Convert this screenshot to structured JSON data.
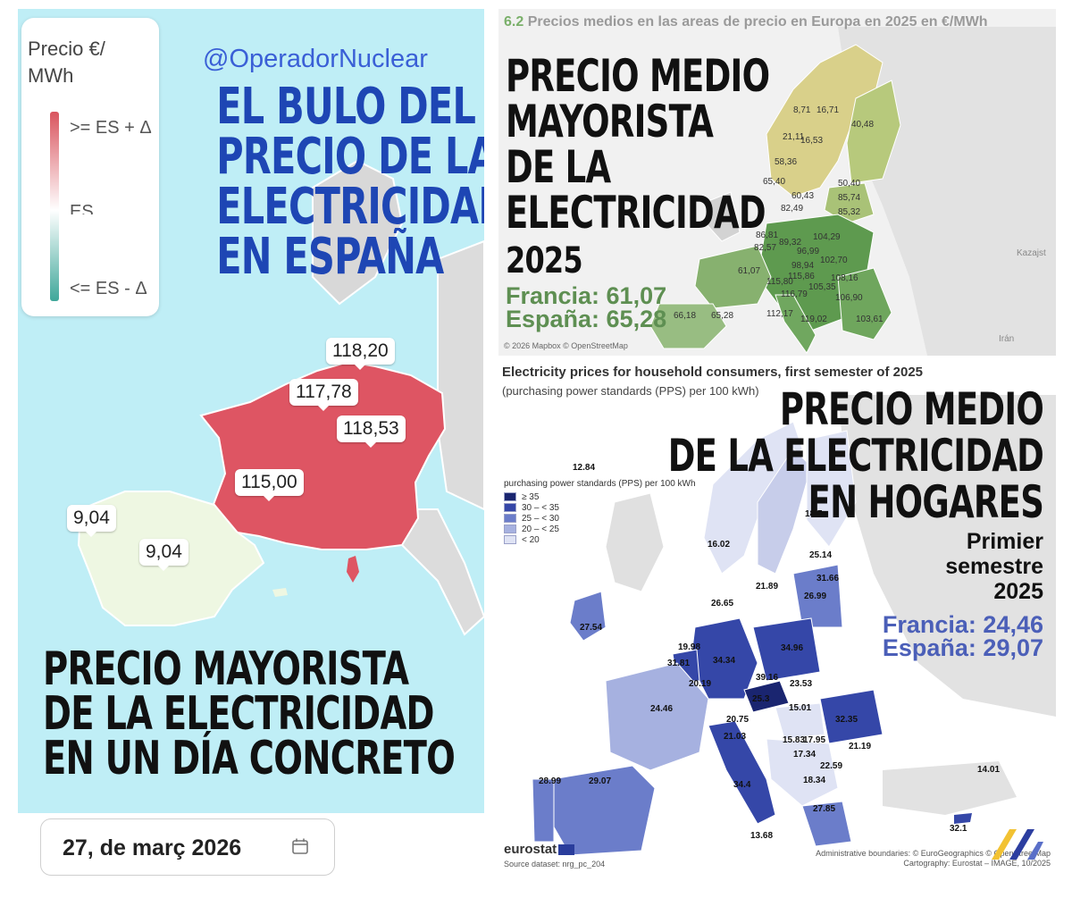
{
  "left_panel": {
    "legend": {
      "title": "Precio €/ MWh",
      "high": ">= ES + Δ",
      "mid": "ES",
      "low": "<= ES - Δ"
    },
    "handle": "@OperadorNuclear",
    "headline": [
      "EL BULO DEL",
      "PRECIO DE LA",
      "ELECTRICIDAD",
      "EN ESPAÑA"
    ],
    "prices": [
      {
        "id": "fr-ne",
        "value": "118,20"
      },
      {
        "id": "fr-n",
        "value": "117,78"
      },
      {
        "id": "fr-e",
        "value": "118,53"
      },
      {
        "id": "fr-s",
        "value": "115,00"
      },
      {
        "id": "pt",
        "value": "9,04"
      },
      {
        "id": "es",
        "value": "9,04"
      }
    ],
    "caption": [
      "PRECIO MAYORISTA",
      "DE LA ELECTRICIDAD",
      "EN UN DÍA CONCRETO"
    ],
    "date": "27, de març 2026",
    "colors": {
      "france": "#de5563",
      "iberia": "#eef7e2",
      "sea": "#bfeef6"
    }
  },
  "right_top": {
    "title_num": "6.2",
    "title": "Precios medios en las areas de precio en Europa en 2025 en €/MWh",
    "headline": [
      "PRECIO MEDIO",
      "MAYORISTA",
      "DE LA",
      "ELECTRICIDAD"
    ],
    "year": "2025",
    "francia": "Francia: 61,07",
    "espana": "España: 65,28",
    "credit": "© 2026 Mapbox © OpenStreetMap",
    "map_labels": [
      "8,71",
      "16,71",
      "40,48",
      "21,11",
      "16,53",
      "58,36",
      "65,40",
      "50,40",
      "60,43",
      "85,74",
      "82,49",
      "85,32",
      "86,81",
      "89,32",
      "104,29",
      "82,57",
      "96,99",
      "102,70",
      "61,07",
      "98,94",
      "115,86",
      "108,16",
      "115,80",
      "105,35",
      "116,79",
      "106,90",
      "112,17",
      "119,02",
      "103,61",
      "65,28",
      "66,18",
      "Kazajst",
      "Irán"
    ]
  },
  "right_bottom": {
    "title": "Electricity prices for household consumers, first semester of 2025",
    "subtitle": "(purchasing power standards (PPS) per 100 kWh)",
    "headline": [
      "PRECIO MEDIO",
      "DE LA ELECTRICIDAD",
      "EN HOGARES"
    ],
    "semester": [
      "Primier",
      "semestre",
      "2025"
    ],
    "francia": "Francia: 24,46",
    "espana": "España: 29,07",
    "legend": {
      "title": "purchasing power standards (PPS) per 100 kWh",
      "items": [
        {
          "label": "≥ 35",
          "color": "#1a2570"
        },
        {
          "label": "30 – < 35",
          "color": "#3547a8"
        },
        {
          "label": "25 – < 30",
          "color": "#6b7dca"
        },
        {
          "label": "20 – < 25",
          "color": "#a6b1e0"
        },
        {
          "label": "< 20",
          "color": "#dfe3f4"
        }
      ]
    },
    "map_labels": [
      "12.84",
      "18.7",
      "16.02",
      "21.89",
      "25.14",
      "31.66",
      "26.99",
      "26.65",
      "27.54",
      "19.98",
      "31.81",
      "34.34",
      "34.96",
      "20.19",
      "39.16",
      "23.53",
      "25.3",
      "15.01",
      "32.35",
      "24.46",
      "20.75",
      "21.03",
      "15.83",
      "17.95",
      "21.19",
      "17.34",
      "22.59",
      "34.4",
      "28.99",
      "29.07",
      "18.34",
      "14.01",
      "27.85",
      "13.68",
      "32.1"
    ],
    "source": "eurostat",
    "dataset": "Source dataset: nrg_pc_204",
    "admin": "Administrative boundaries: © EuroGeographics © OpenStreetMap",
    "cartography": "Cartography: Eurostat – IMAGE, 10/2025"
  }
}
